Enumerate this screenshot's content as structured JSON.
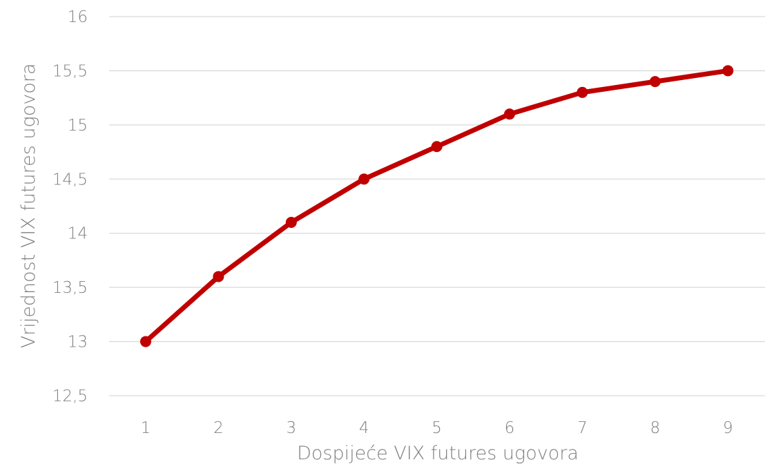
{
  "chart_data": {
    "type": "line",
    "title": "",
    "xlabel": "Dospijeće VIX futures ugovora",
    "ylabel": "Vrijednost VIX futures ugovora",
    "categories": [
      "1",
      "2",
      "3",
      "4",
      "5",
      "6",
      "7",
      "8",
      "9"
    ],
    "series": [
      {
        "values": [
          13,
          13.6,
          14.1,
          14.5,
          14.8,
          15.1,
          15.3,
          15.4,
          15.5
        ],
        "color": "#c00000"
      }
    ],
    "ylim": [
      12.5,
      16
    ],
    "yticks": [
      "12,5",
      "13",
      "13,5",
      "14",
      "14,5",
      "15",
      "15,5",
      "16"
    ],
    "grid": true,
    "legend": "none",
    "gridline_color": "#d9d9d9",
    "text_color": "#7f7f7f"
  }
}
